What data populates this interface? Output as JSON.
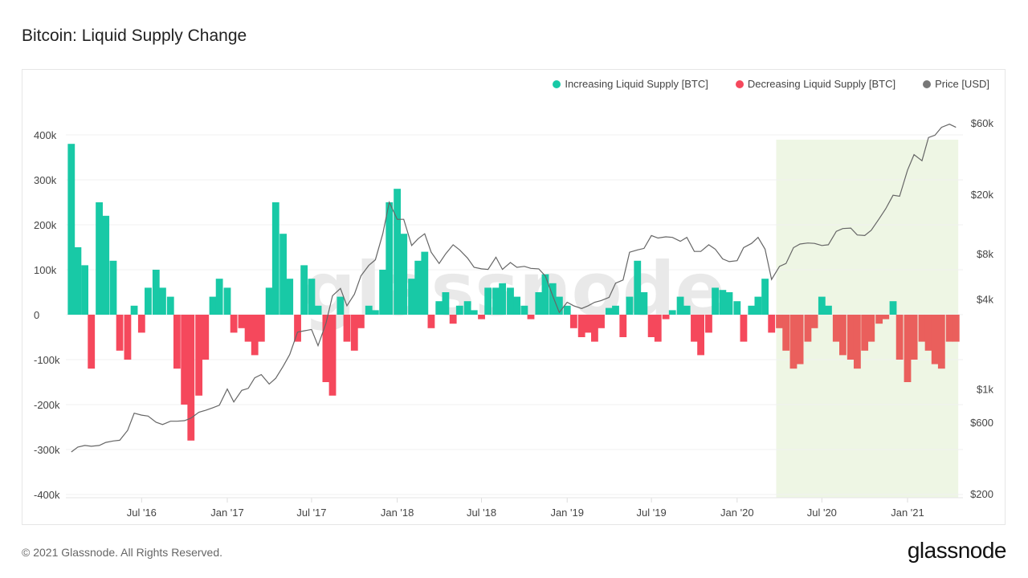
{
  "title": "Bitcoin: Liquid Supply Change",
  "footer": "© 2021 Glassnode. All Rights Reserved.",
  "logo": "glassnode",
  "watermark": "glassnode",
  "legend": [
    {
      "label": "Increasing Liquid Supply [BTC]",
      "color": "#18c9a6"
    },
    {
      "label": "Decreasing Liquid Supply [BTC]",
      "color": "#f5485c"
    },
    {
      "label": "Price [USD]",
      "color": "#777777"
    }
  ],
  "chart_data": {
    "type": "bar",
    "title": "Bitcoin: Liquid Supply Change",
    "left_axis": {
      "ticks": [
        400000,
        300000,
        200000,
        100000,
        0,
        -100000,
        -200000,
        -300000,
        -400000
      ],
      "tick_labels": [
        "400k",
        "300k",
        "200k",
        "100k",
        "0",
        "-100k",
        "-200k",
        "-300k",
        "-400k"
      ],
      "range": [
        -400000,
        400000
      ]
    },
    "right_axis": {
      "scale": "log",
      "ticks": [
        60000,
        20000,
        8000,
        4000,
        1000,
        600,
        200
      ],
      "tick_labels": [
        "$60k",
        "$20k",
        "$8k",
        "$4k",
        "$1k",
        "$600",
        "$200"
      ],
      "range": [
        200,
        60000
      ]
    },
    "x_axis": {
      "ticks": [
        "2016-07-01",
        "2017-01-01",
        "2017-07-01",
        "2018-01-01",
        "2018-07-01",
        "2019-01-01",
        "2019-07-01",
        "2020-01-01",
        "2020-07-01",
        "2021-01-01"
      ],
      "tick_labels": [
        "Jul '16",
        "Jan '17",
        "Jul '17",
        "Jan '18",
        "Jul '18",
        "Jan '19",
        "Jul '19",
        "Jan '20",
        "Jul '20",
        "Jan '21"
      ]
    },
    "grid": true,
    "legend_position": "top-right",
    "highlight_range": [
      "2020-03-25",
      "2021-04-20"
    ],
    "highlight_color": "#eef6e4",
    "series_names": [
      "Increasing Liquid Supply [BTC]",
      "Decreasing Liquid Supply [BTC]",
      "Price [USD]"
    ],
    "start_date": "2016-02-01",
    "interval": "semi-monthly",
    "supply_change": [
      380000,
      150000,
      110000,
      -120000,
      250000,
      220000,
      120000,
      -80000,
      -100000,
      20000,
      -40000,
      60000,
      100000,
      60000,
      40000,
      -120000,
      -200000,
      -280000,
      -180000,
      -100000,
      40000,
      80000,
      60000,
      -40000,
      -30000,
      -60000,
      -90000,
      -60000,
      60000,
      250000,
      180000,
      80000,
      -60000,
      110000,
      80000,
      20000,
      -150000,
      -180000,
      40000,
      -60000,
      -80000,
      -30000,
      20000,
      10000,
      100000,
      250000,
      280000,
      180000,
      80000,
      120000,
      140000,
      -30000,
      30000,
      50000,
      -20000,
      20000,
      30000,
      10000,
      -10000,
      60000,
      60000,
      70000,
      60000,
      40000,
      20000,
      -10000,
      50000,
      90000,
      70000,
      40000,
      20000,
      -30000,
      -50000,
      -40000,
      -60000,
      -30000,
      15000,
      20000,
      -50000,
      40000,
      120000,
      50000,
      -50000,
      -60000,
      -10000,
      10000,
      40000,
      20000,
      -60000,
      -90000,
      -40000,
      60000,
      55000,
      50000,
      30000,
      -60000,
      20000,
      40000,
      80000,
      -40000,
      -30000,
      -80000,
      -120000,
      -110000,
      -60000,
      -30000,
      40000,
      20000,
      -60000,
      -90000,
      -100000,
      -120000,
      -80000,
      -60000,
      -20000,
      -10000,
      30000,
      -100000,
      -150000,
      -100000,
      -60000,
      -80000,
      -110000,
      -120000,
      -60000,
      -60000
    ],
    "price": [
      380,
      410,
      420,
      415,
      420,
      440,
      450,
      455,
      530,
      690,
      670,
      660,
      600,
      580,
      610,
      610,
      615,
      640,
      700,
      720,
      750,
      780,
      1000,
      820,
      980,
      1010,
      1190,
      1250,
      1080,
      1180,
      1420,
      1700,
      2400,
      2450,
      2500,
      1950,
      2750,
      4200,
      4700,
      3600,
      4300,
      5700,
      6700,
      7300,
      10900,
      17700,
      13600,
      13600,
      9100,
      10100,
      10900,
      8200,
      6900,
      8000,
      9200,
      8500,
      7500,
      6500,
      6350,
      6300,
      7600,
      6300,
      7000,
      6500,
      6600,
      6400,
      6350,
      5700,
      4200,
      3250,
      3800,
      3600,
      3450,
      3600,
      3800,
      3900,
      4100,
      5100,
      5350,
      8200,
      8500,
      8700,
      10600,
      10200,
      10400,
      10300,
      9700,
      10300,
      8300,
      8300,
      9200,
      8600,
      7400,
      7100,
      7200,
      8800,
      9400,
      10300,
      8600,
      5400,
      6600,
      6900,
      8800,
      9300,
      9450,
      9400,
      9100,
      9200,
      11300,
      11800,
      11900,
      10700,
      10600,
      11500,
      13700,
      16000,
      19700,
      19400,
      29000,
      36800,
      33500,
      47900,
      49600,
      56000,
      58800,
      56000
    ]
  }
}
